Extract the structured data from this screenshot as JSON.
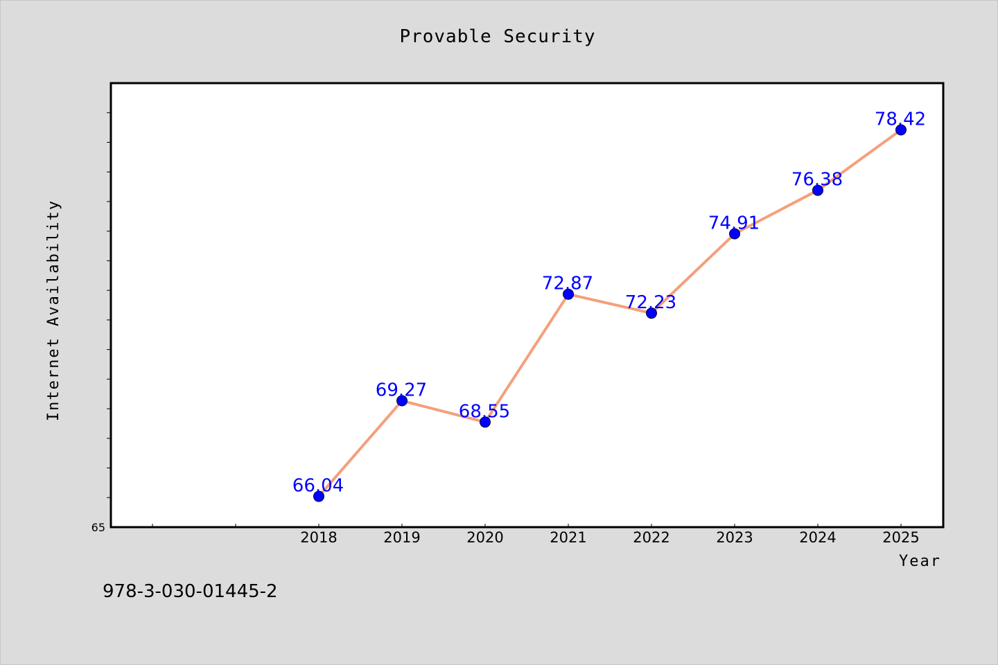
{
  "colors": {
    "background": "#dcdcdc",
    "plot_background": "#ffffff",
    "line": "#f4a07a",
    "marker": "#0000ff",
    "data_label": "#0000ff"
  },
  "footer": {
    "code": "978-3-030-01445-2"
  },
  "chart_data": {
    "type": "line",
    "title": "Provable Security",
    "xlabel": "Year",
    "ylabel": "Internet Availability",
    "categories": [
      "2018",
      "2019",
      "2020",
      "2021",
      "2022",
      "2023",
      "2024",
      "2025"
    ],
    "series": [
      {
        "values": [
          66.04,
          69.27,
          68.55,
          72.87,
          72.23,
          74.91,
          76.38,
          78.42
        ]
      }
    ],
    "data_labels": [
      "66.04",
      "69.27",
      "68.55",
      "72.87",
      "72.23",
      "74.91",
      "76.38",
      "78.42"
    ],
    "x_slots": 10,
    "x_first_category_slot": 2,
    "ylim": [
      65,
      80
    ],
    "ytick_labels": [
      "65"
    ],
    "y_minor_step": 1,
    "grid": false,
    "legend": "none"
  }
}
